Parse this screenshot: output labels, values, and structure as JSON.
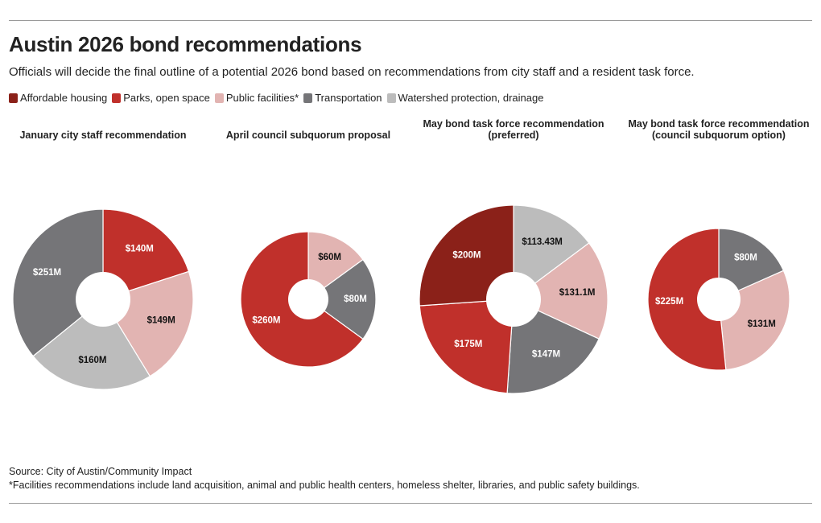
{
  "header": {
    "title": "Austin 2026 bond recommendations",
    "subtitle": "Officials will decide the final outline of a potential 2026 bond based on recommendations from city staff and a resident task force."
  },
  "legend": [
    {
      "label": "Affordable housing",
      "color": "#8b2119"
    },
    {
      "label": "Parks, open space",
      "color": "#c0302b"
    },
    {
      "label": "Public facilities*",
      "color": "#e2b4b2"
    },
    {
      "label": "Transportation",
      "color": "#757578"
    },
    {
      "label": "Watershed protection, drainage",
      "color": "#bcbcbc"
    }
  ],
  "chart_data": [
    {
      "type": "pie",
      "title_lines": [
        "January city staff recommendation"
      ],
      "slices": [
        {
          "category": "Parks, open space",
          "value": 140,
          "label": "$140M"
        },
        {
          "category": "Public facilities*",
          "value": 149,
          "label": "$149M"
        },
        {
          "category": "Watershed protection, drainage",
          "value": 160,
          "label": "$160M"
        },
        {
          "category": "Transportation",
          "value": 251,
          "label": "$251M"
        }
      ]
    },
    {
      "type": "pie",
      "title_lines": [
        "April council subquorum proposal"
      ],
      "slices": [
        {
          "category": "Public facilities*",
          "value": 60,
          "label": "$60M"
        },
        {
          "category": "Transportation",
          "value": 80,
          "label": "$80M"
        },
        {
          "category": "Parks, open space",
          "value": 260,
          "label": "$260M"
        }
      ]
    },
    {
      "type": "pie",
      "title_lines": [
        "May bond task force recommendation",
        "(preferred)"
      ],
      "slices": [
        {
          "category": "Watershed protection, drainage",
          "value": 113.43,
          "label": "$113.43M"
        },
        {
          "category": "Public facilities*",
          "value": 131.1,
          "label": "$131.1M"
        },
        {
          "category": "Transportation",
          "value": 147,
          "label": "$147M"
        },
        {
          "category": "Parks, open space",
          "value": 175,
          "label": "$175M"
        },
        {
          "category": "Affordable housing",
          "value": 200,
          "label": "$200M"
        }
      ]
    },
    {
      "type": "pie",
      "title_lines": [
        "May bond task force recommendation",
        "(council subquorum option)"
      ],
      "slices": [
        {
          "category": "Transportation",
          "value": 80,
          "label": "$80M"
        },
        {
          "category": "Public facilities*",
          "value": 131,
          "label": "$131M"
        },
        {
          "category": "Parks, open space",
          "value": 225,
          "label": "$225M"
        }
      ]
    }
  ],
  "footer": {
    "source": "Source: City of Austin/Community Impact",
    "note": "*Facilities recommendations include land acquisition, animal and public health centers, homeless shelter, libraries, and public safety buildings."
  }
}
